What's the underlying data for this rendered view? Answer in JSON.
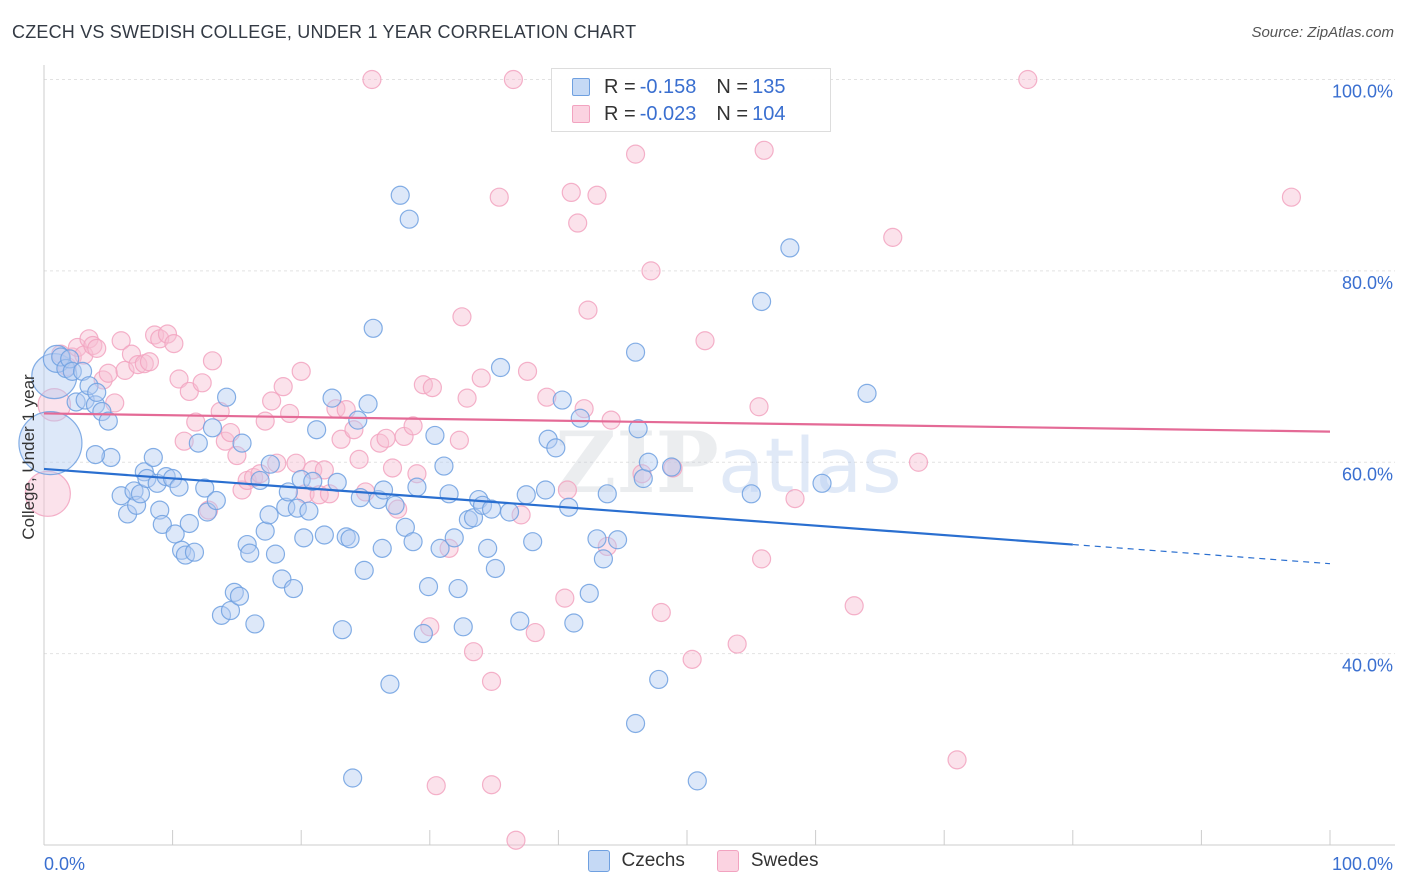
{
  "title": "CZECH VS SWEDISH COLLEGE, UNDER 1 YEAR CORRELATION CHART",
  "source": "Source: ZipAtlas.com",
  "colors": {
    "czech": "#6fa0e0",
    "swede": "#f2a3c0",
    "czech_line": "#2a6fd0",
    "swede_line": "#e46a96",
    "axis_text": "#3a6fd0"
  },
  "legend_top": {
    "czech": {
      "r_label": "R =",
      "r_value": "-0.158",
      "n_label": "N =",
      "n_value": "135"
    },
    "swede": {
      "r_label": "R =",
      "r_value": "-0.023",
      "n_label": "N =",
      "n_value": "104"
    }
  },
  "legend_bottom": {
    "czech": "Czechs",
    "swede": "Swedes"
  },
  "chart_data": {
    "type": "scatter",
    "xlabel": "",
    "ylabel": "College, Under 1 year",
    "xlim": [
      0,
      100
    ],
    "ylim": [
      20,
      102
    ],
    "x_tick_labels": [
      "0.0%",
      "100.0%"
    ],
    "y_ticks": [
      40,
      60,
      80,
      100
    ],
    "y_tick_labels": [
      "40.0%",
      "60.0%",
      "80.0%",
      "100.0%"
    ],
    "grid": true,
    "legend_position": "top-center",
    "series": [
      {
        "name": "Czechs",
        "trend": {
          "x0": 0,
          "y0": 59.3,
          "x1": 80,
          "y1": 51.4,
          "dashed_to_x": 100,
          "dashed_to_y": 49.4
        },
        "points": [
          [
            0.5,
            62,
            3.5
          ],
          [
            0.8,
            69,
            2.5
          ],
          [
            1.0,
            70.8,
            1.5
          ],
          [
            1.3,
            71,
            1
          ],
          [
            1.7,
            69.8,
            1
          ],
          [
            2,
            70.8,
            1
          ],
          [
            2.2,
            69.5,
            1
          ],
          [
            2.5,
            66.3,
            1
          ],
          [
            3,
            69.5,
            1
          ],
          [
            3.2,
            66.5,
            1
          ],
          [
            3.5,
            68,
            1
          ],
          [
            4,
            66,
            1
          ],
          [
            4.1,
            67.3,
            1
          ],
          [
            4.5,
            65.3,
            1
          ],
          [
            5,
            64.3,
            1
          ],
          [
            5.2,
            60.5,
            1
          ],
          [
            4,
            60.8,
            1
          ],
          [
            6,
            56.5,
            1
          ],
          [
            6.5,
            54.6,
            1
          ],
          [
            7,
            57,
            1
          ],
          [
            7.2,
            55.5,
            1
          ],
          [
            7.5,
            56.7,
            1
          ],
          [
            7.8,
            59,
            1
          ],
          [
            8,
            58.3,
            1
          ],
          [
            8.5,
            60.5,
            1
          ],
          [
            8.8,
            57.8,
            1
          ],
          [
            9,
            55,
            1
          ],
          [
            9.2,
            53.5,
            1
          ],
          [
            9.5,
            58.5,
            1
          ],
          [
            10,
            58.3,
            1
          ],
          [
            10.2,
            52.5,
            1
          ],
          [
            10.5,
            57.4,
            1
          ],
          [
            10.7,
            50.8,
            1
          ],
          [
            11,
            50.3,
            1
          ],
          [
            11.3,
            53.6,
            1
          ],
          [
            11.7,
            50.6,
            1
          ],
          [
            12,
            62,
            1
          ],
          [
            12.5,
            57.3,
            1
          ],
          [
            12.7,
            54.8,
            1
          ],
          [
            13.1,
            63.6,
            1
          ],
          [
            13.4,
            56,
            1
          ],
          [
            13.8,
            44,
            1
          ],
          [
            14.2,
            66.8,
            1
          ],
          [
            14.5,
            44.5,
            1
          ],
          [
            14.8,
            46.4,
            1
          ],
          [
            15.2,
            46,
            1
          ],
          [
            15.4,
            62,
            1
          ],
          [
            15.8,
            51.4,
            1
          ],
          [
            16,
            50.5,
            1
          ],
          [
            16.4,
            43.1,
            1
          ],
          [
            16.8,
            58.1,
            1
          ],
          [
            17.2,
            52.8,
            1
          ],
          [
            17.5,
            54.5,
            1
          ],
          [
            17.6,
            59.8,
            1
          ],
          [
            18,
            50.4,
            1
          ],
          [
            18.5,
            47.8,
            1
          ],
          [
            18.8,
            55.3,
            1
          ],
          [
            19,
            56.9,
            1
          ],
          [
            19.4,
            46.8,
            1
          ],
          [
            19.7,
            55.2,
            1
          ],
          [
            20,
            58.2,
            1
          ],
          [
            20.2,
            52.1,
            1
          ],
          [
            20.6,
            54.9,
            1
          ],
          [
            20.9,
            58,
            1
          ],
          [
            21.2,
            63.4,
            1
          ],
          [
            21.8,
            52.4,
            1
          ],
          [
            22.4,
            66.7,
            1
          ],
          [
            22.8,
            57.9,
            1
          ],
          [
            23.2,
            42.5,
            1
          ],
          [
            23.5,
            52.2,
            1
          ],
          [
            23.8,
            52,
            1
          ],
          [
            24.4,
            64.4,
            1
          ],
          [
            24.9,
            48.7,
            1
          ],
          [
            25.2,
            66.1,
            1
          ],
          [
            25.6,
            74,
            1
          ],
          [
            26,
            56.1,
            1
          ],
          [
            26.4,
            57.1,
            1
          ],
          [
            26.9,
            36.8,
            1
          ],
          [
            27.3,
            55.5,
            1
          ],
          [
            27.7,
            87.9,
            1
          ],
          [
            28.1,
            53.2,
            1
          ],
          [
            28.4,
            85.4,
            1
          ],
          [
            28.7,
            51.7,
            1
          ],
          [
            29,
            57.4,
            1
          ],
          [
            29.5,
            42.1,
            1
          ],
          [
            29.9,
            47,
            1
          ],
          [
            30.4,
            62.8,
            1
          ],
          [
            30.8,
            51,
            1
          ],
          [
            31.1,
            59.6,
            1
          ],
          [
            31.5,
            56.7,
            1
          ],
          [
            31.9,
            52.1,
            1
          ],
          [
            32.2,
            46.8,
            1
          ],
          [
            32.6,
            42.8,
            1
          ],
          [
            33,
            54,
            1
          ],
          [
            33.4,
            54.2,
            1
          ],
          [
            33.8,
            56.1,
            1
          ],
          [
            34.1,
            55.5,
            1
          ],
          [
            34.5,
            51,
            1
          ],
          [
            34.8,
            55.1,
            1
          ],
          [
            35.1,
            48.9,
            1
          ],
          [
            35.5,
            69.9,
            1
          ],
          [
            36.2,
            54.8,
            1
          ],
          [
            37,
            43.4,
            1
          ],
          [
            37.5,
            56.6,
            1
          ],
          [
            38,
            51.7,
            1
          ],
          [
            39,
            57.1,
            1
          ],
          [
            39.2,
            62.4,
            1
          ],
          [
            39.8,
            61.5,
            1
          ],
          [
            40.3,
            66.5,
            1
          ],
          [
            40.8,
            55.3,
            1
          ],
          [
            41.2,
            43.2,
            1
          ],
          [
            41.7,
            64.6,
            1
          ],
          [
            42.4,
            46.3,
            1
          ],
          [
            43,
            52,
            1
          ],
          [
            43.5,
            49.9,
            1
          ],
          [
            43.8,
            56.7,
            1
          ],
          [
            44.6,
            51.9,
            1
          ],
          [
            46,
            32.7,
            1
          ],
          [
            46.2,
            63.5,
            1
          ],
          [
            46.6,
            58.3,
            1
          ],
          [
            47,
            60,
            1
          ],
          [
            47.8,
            37.3,
            1
          ],
          [
            48.8,
            59.5,
            1
          ],
          [
            50.8,
            26.7,
            1
          ],
          [
            55,
            56.7,
            1
          ],
          [
            55.8,
            76.8,
            1
          ],
          [
            58,
            82.4,
            1
          ],
          [
            60.5,
            57.8,
            1
          ],
          [
            64,
            67.2,
            1
          ],
          [
            46,
            71.5,
            1
          ],
          [
            24,
            27,
            1
          ],
          [
            24.6,
            56.3,
            1
          ],
          [
            26.3,
            51,
            1
          ]
        ]
      },
      {
        "name": "Swedes",
        "trend": {
          "x0": 0,
          "y0": 65.1,
          "x1": 100,
          "y1": 63.2
        },
        "points": [
          [
            0.3,
            56.7,
            2.5
          ],
          [
            0.8,
            66,
            1.8
          ],
          [
            1.3,
            71.3,
            1
          ],
          [
            1.8,
            70,
            1
          ],
          [
            2.2,
            71,
            1
          ],
          [
            2.6,
            72,
            1
          ],
          [
            3.1,
            71.2,
            1
          ],
          [
            3.5,
            72.9,
            1
          ],
          [
            3.8,
            72.2,
            1
          ],
          [
            4.1,
            71.9,
            1
          ],
          [
            4.6,
            68.6,
            1
          ],
          [
            5,
            69.3,
            1
          ],
          [
            5.5,
            66.2,
            1
          ],
          [
            6,
            72.7,
            1
          ],
          [
            6.3,
            69.6,
            1
          ],
          [
            6.8,
            71.3,
            1
          ],
          [
            7.3,
            70.2,
            1
          ],
          [
            7.8,
            70.3,
            1
          ],
          [
            8.2,
            70.5,
            1
          ],
          [
            8.6,
            73.3,
            1
          ],
          [
            9,
            72.9,
            1
          ],
          [
            9.6,
            73.4,
            1
          ],
          [
            10.1,
            72.4,
            1
          ],
          [
            10.5,
            68.7,
            1
          ],
          [
            10.9,
            62.2,
            1
          ],
          [
            11.3,
            67.4,
            1
          ],
          [
            11.8,
            64.2,
            1
          ],
          [
            12.3,
            68.3,
            1
          ],
          [
            12.8,
            55,
            1
          ],
          [
            13.1,
            70.6,
            1
          ],
          [
            13.7,
            65.3,
            1
          ],
          [
            14.1,
            62.2,
            1
          ],
          [
            14.5,
            63.1,
            1
          ],
          [
            15,
            60.7,
            1
          ],
          [
            15.4,
            57.1,
            1
          ],
          [
            15.8,
            58.1,
            1
          ],
          [
            16.3,
            58.4,
            1
          ],
          [
            16.8,
            58.8,
            1
          ],
          [
            17.2,
            64.3,
            1
          ],
          [
            17.7,
            66.4,
            1
          ],
          [
            18.1,
            59.9,
            1
          ],
          [
            18.6,
            67.9,
            1
          ],
          [
            19.1,
            65.1,
            1
          ],
          [
            19.6,
            59.9,
            1
          ],
          [
            20,
            69.5,
            1
          ],
          [
            20.3,
            56.7,
            1
          ],
          [
            20.9,
            59.2,
            1
          ],
          [
            21.4,
            56.6,
            1
          ],
          [
            21.8,
            59.2,
            1
          ],
          [
            22.2,
            56.7,
            1
          ],
          [
            22.7,
            65.6,
            1
          ],
          [
            23.1,
            62.4,
            1
          ],
          [
            23.5,
            65.5,
            1
          ],
          [
            24.1,
            63.4,
            1
          ],
          [
            24.5,
            60.3,
            1
          ],
          [
            25,
            56.9,
            1
          ],
          [
            25.5,
            100,
            1
          ],
          [
            26.1,
            62,
            1
          ],
          [
            26.6,
            62.5,
            1
          ],
          [
            27.1,
            59.4,
            1
          ],
          [
            27.5,
            55.1,
            1
          ],
          [
            28,
            62.7,
            1
          ],
          [
            28.7,
            63.8,
            1
          ],
          [
            29,
            58.8,
            1
          ],
          [
            29.5,
            68.1,
            1
          ],
          [
            30,
            42.8,
            1
          ],
          [
            30.2,
            67.8,
            1
          ],
          [
            30.5,
            26.2,
            1
          ],
          [
            31.5,
            51,
            1
          ],
          [
            32.3,
            62.3,
            1
          ],
          [
            32.5,
            75.2,
            1
          ],
          [
            32.9,
            66.7,
            1
          ],
          [
            33.4,
            40.2,
            1
          ],
          [
            34,
            68.8,
            1
          ],
          [
            34.8,
            37.1,
            1
          ],
          [
            34.8,
            26.3,
            1
          ],
          [
            35.4,
            87.7,
            1
          ],
          [
            36.5,
            100,
            1
          ],
          [
            36.7,
            20.5,
            1
          ],
          [
            37.1,
            54.5,
            1
          ],
          [
            37.6,
            69.5,
            1
          ],
          [
            38.2,
            42.2,
            1
          ],
          [
            39.1,
            66.8,
            1
          ],
          [
            40.5,
            45.8,
            1
          ],
          [
            40.7,
            57.1,
            1
          ],
          [
            41,
            88.2,
            1
          ],
          [
            41.5,
            85,
            1
          ],
          [
            42,
            65.6,
            1
          ],
          [
            42.3,
            75.9,
            1
          ],
          [
            43,
            87.9,
            1
          ],
          [
            43.8,
            51.2,
            1
          ],
          [
            44.1,
            64.4,
            1
          ],
          [
            46,
            92.2,
            1
          ],
          [
            46.5,
            58.8,
            1
          ],
          [
            47.2,
            80,
            1
          ],
          [
            48,
            44.3,
            1
          ],
          [
            48.9,
            59.4,
            1
          ],
          [
            50.4,
            39.4,
            1
          ],
          [
            51.4,
            72.7,
            1
          ],
          [
            53.9,
            41,
            1
          ],
          [
            55.6,
            65.8,
            1
          ],
          [
            55.8,
            49.9,
            1
          ],
          [
            56,
            92.6,
            1
          ],
          [
            58.4,
            56.2,
            1
          ],
          [
            63,
            45,
            1
          ],
          [
            66,
            83.5,
            1
          ],
          [
            68,
            60,
            1
          ],
          [
            71,
            28.9,
            1
          ],
          [
            76.5,
            100,
            1
          ],
          [
            97,
            87.7,
            1
          ]
        ]
      }
    ]
  }
}
